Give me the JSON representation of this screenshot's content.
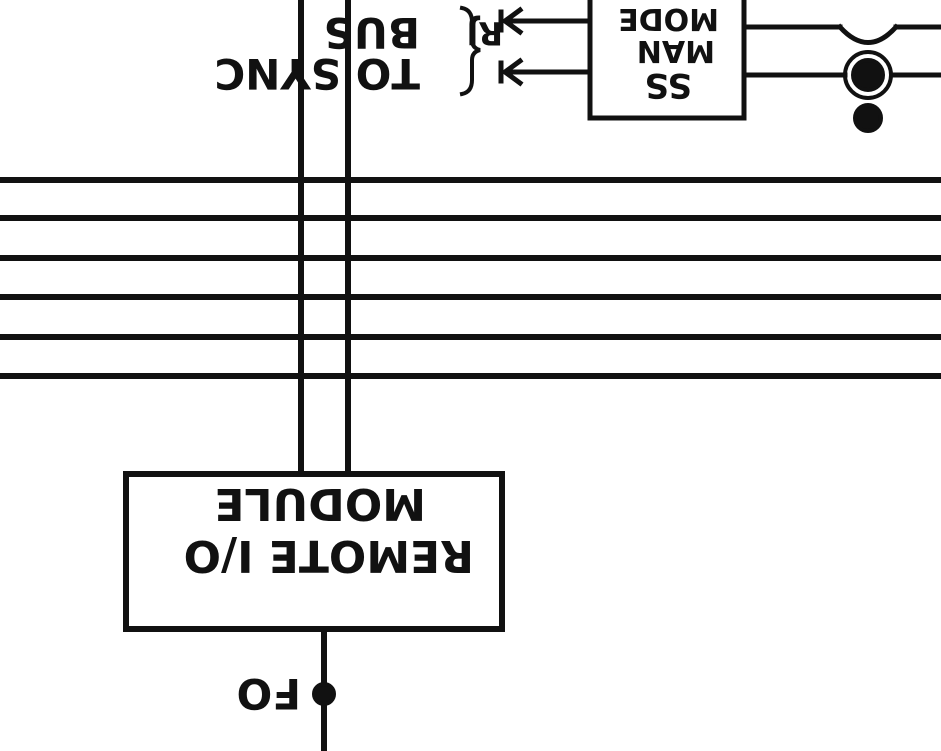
{
  "diagram": {
    "labels": {
      "to_sync": "TO SYNC",
      "bus": "BUS",
      "rj": "RJ",
      "ss_man_mode": [
        "SS",
        "MAN",
        "MODE"
      ],
      "remote_io_module": [
        "REMOTE I/O",
        "MODULE"
      ],
      "fo": "FO"
    },
    "colors": {
      "ink": "#111111",
      "background": "#ffffff"
    }
  }
}
